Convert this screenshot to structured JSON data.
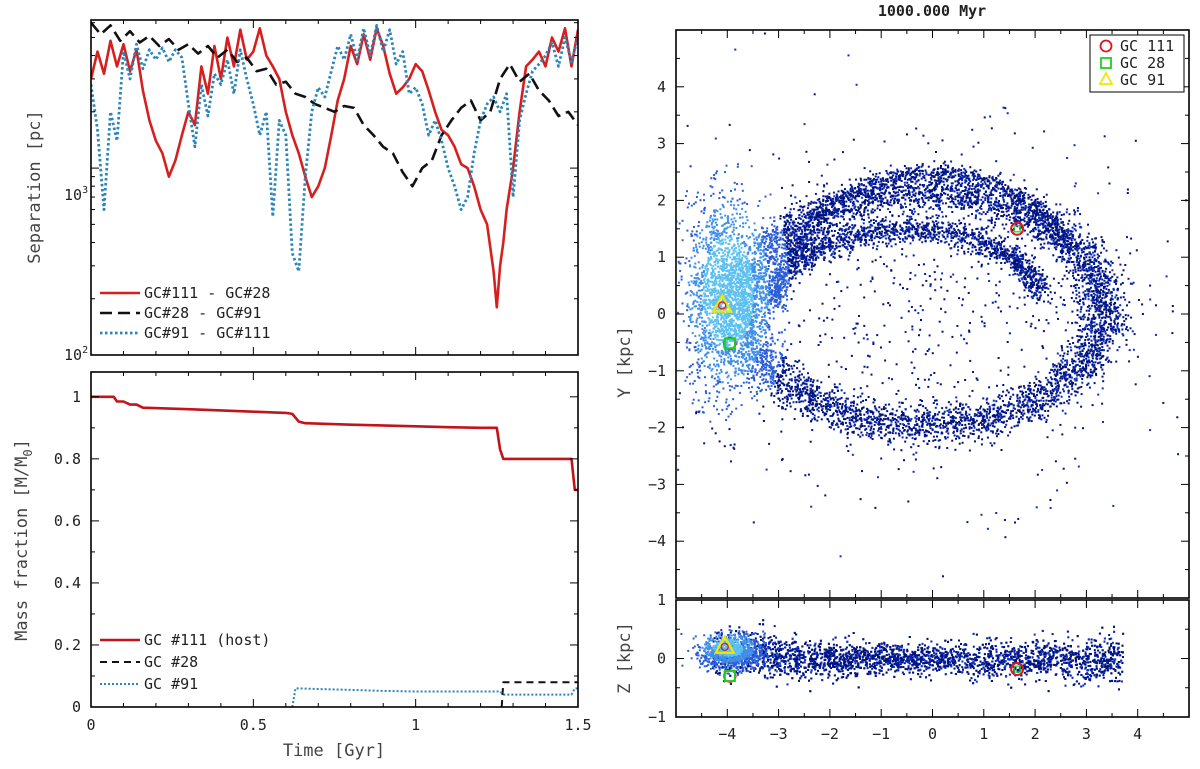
{
  "chart_data": [
    {
      "id": "separation",
      "type": "line",
      "yscale": "log",
      "ylabel": "Separation [pc]",
      "xlim": [
        0,
        1.5
      ],
      "ylim": [
        100,
        6200
      ],
      "yticks": [
        {
          "v": 100,
          "base": "10",
          "exp": "2"
        },
        {
          "v": 1000,
          "base": "10",
          "exp": "3"
        }
      ],
      "legend": "bottom-left",
      "series": [
        {
          "name": "GC#111 - GC#28",
          "color": "#d62020",
          "dash": "none",
          "width": 2.6,
          "x": [
            0,
            0.02,
            0.04,
            0.06,
            0.08,
            0.1,
            0.12,
            0.14,
            0.16,
            0.18,
            0.2,
            0.22,
            0.24,
            0.26,
            0.28,
            0.3,
            0.32,
            0.34,
            0.36,
            0.38,
            0.4,
            0.42,
            0.44,
            0.46,
            0.48,
            0.5,
            0.52,
            0.54,
            0.56,
            0.58,
            0.6,
            0.62,
            0.64,
            0.66,
            0.68,
            0.7,
            0.72,
            0.74,
            0.76,
            0.78,
            0.8,
            0.82,
            0.84,
            0.86,
            0.88,
            0.9,
            0.92,
            0.94,
            0.96,
            0.98,
            1.0,
            1.02,
            1.04,
            1.06,
            1.08,
            1.1,
            1.12,
            1.14,
            1.16,
            1.18,
            1.2,
            1.22,
            1.24,
            1.25,
            1.26,
            1.27,
            1.28,
            1.3,
            1.32,
            1.34,
            1.36,
            1.38,
            1.4,
            1.42,
            1.44,
            1.46,
            1.48,
            1.5
          ],
          "y": [
            3000,
            4200,
            3200,
            4800,
            3500,
            4600,
            3300,
            4300,
            2600,
            1800,
            1400,
            1200,
            900,
            1100,
            1500,
            2000,
            1700,
            3500,
            2500,
            4500,
            3000,
            5000,
            3500,
            5500,
            3800,
            4200,
            5600,
            4000,
            3500,
            3000,
            2000,
            1500,
            1200,
            900,
            700,
            800,
            1000,
            1500,
            2300,
            3000,
            4500,
            3600,
            5200,
            3800,
            5600,
            4500,
            3200,
            2500,
            2700,
            3000,
            3600,
            3300,
            2600,
            2000,
            1600,
            1500,
            1300,
            1050,
            1000,
            800,
            600,
            500,
            280,
            180,
            300,
            400,
            600,
            1000,
            2000,
            3500,
            3800,
            4200,
            3500,
            5000,
            4200,
            5600,
            3500,
            5500
          ]
        },
        {
          "name": "GC#28 - GC#91",
          "color": "#111111",
          "dash": "12,6",
          "width": 2.6,
          "x": [
            0,
            0.03,
            0.06,
            0.09,
            0.12,
            0.15,
            0.18,
            0.21,
            0.24,
            0.27,
            0.3,
            0.33,
            0.36,
            0.39,
            0.42,
            0.45,
            0.48,
            0.51,
            0.54,
            0.57,
            0.6,
            0.63,
            0.66,
            0.69,
            0.72,
            0.75,
            0.78,
            0.81,
            0.84,
            0.87,
            0.9,
            0.93,
            0.96,
            0.99,
            1.02,
            1.05,
            1.08,
            1.11,
            1.14,
            1.17,
            1.2,
            1.23,
            1.26,
            1.29,
            1.32,
            1.35,
            1.38,
            1.41,
            1.44,
            1.47,
            1.5
          ],
          "y": [
            6000,
            5200,
            5800,
            4800,
            5400,
            4700,
            5100,
            4500,
            4900,
            4300,
            4600,
            4100,
            4500,
            3900,
            4300,
            3700,
            3900,
            3300,
            3400,
            2800,
            2900,
            2500,
            2400,
            2200,
            2100,
            2000,
            2150,
            2100,
            1700,
            1500,
            1300,
            1200,
            950,
            800,
            1000,
            1100,
            1500,
            1800,
            2100,
            2300,
            1800,
            2000,
            3000,
            3600,
            2900,
            3200,
            2600,
            2300,
            1900,
            2000,
            1700
          ]
        },
        {
          "name": "GC#91 - GC#111",
          "color": "#2a86b8",
          "dash": "2.5,2.5",
          "width": 2.8,
          "x": [
            0,
            0.02,
            0.04,
            0.06,
            0.08,
            0.1,
            0.12,
            0.14,
            0.16,
            0.18,
            0.2,
            0.22,
            0.24,
            0.26,
            0.28,
            0.3,
            0.32,
            0.34,
            0.36,
            0.38,
            0.4,
            0.42,
            0.44,
            0.46,
            0.48,
            0.5,
            0.52,
            0.54,
            0.56,
            0.58,
            0.6,
            0.62,
            0.64,
            0.66,
            0.68,
            0.7,
            0.72,
            0.74,
            0.76,
            0.78,
            0.8,
            0.82,
            0.84,
            0.86,
            0.88,
            0.9,
            0.92,
            0.94,
            0.96,
            0.98,
            1.0,
            1.02,
            1.04,
            1.06,
            1.08,
            1.1,
            1.12,
            1.14,
            1.16,
            1.18,
            1.2,
            1.22,
            1.24,
            1.26,
            1.28,
            1.3,
            1.32,
            1.34,
            1.36,
            1.38,
            1.4,
            1.42,
            1.44,
            1.46,
            1.48,
            1.5
          ],
          "y": [
            2800,
            1600,
            600,
            2000,
            1400,
            4200,
            3000,
            4600,
            3400,
            4300,
            3800,
            4400,
            3700,
            4300,
            3900,
            2200,
            1300,
            2800,
            1900,
            3200,
            2800,
            3800,
            2500,
            4300,
            3000,
            2200,
            1500,
            2000,
            550,
            1800,
            1500,
            350,
            280,
            900,
            2000,
            2700,
            2400,
            3300,
            4500,
            3800,
            5200,
            3800,
            5600,
            4000,
            5800,
            4200,
            5500,
            3600,
            4200,
            2500,
            2700,
            2200,
            1500,
            1800,
            1400,
            1000,
            800,
            600,
            700,
            1200,
            1800,
            2200,
            2400,
            2000,
            2500,
            700,
            1800,
            2500,
            3300,
            3600,
            4000,
            4700,
            3500,
            5000,
            3700,
            5000
          ]
        }
      ]
    },
    {
      "id": "mass",
      "type": "line",
      "ylabel": "Mass fraction [M/M",
      "ylabel_sub": "0",
      "ylabel_close": "]",
      "xlabel": "Time [Gyr]",
      "xlim": [
        0,
        1.5
      ],
      "ylim": [
        0,
        1.08
      ],
      "xticks": [
        0,
        0.5,
        1,
        1.5
      ],
      "xtick_labels": [
        "0",
        "0.5",
        "1",
        "1.5"
      ],
      "yticks": [
        0,
        0.2,
        0.4,
        0.6,
        0.8,
        1
      ],
      "ytick_labels": [
        "0",
        "0.2",
        "0.4",
        "0.6",
        "0.8",
        "1"
      ],
      "legend": "bottom-left",
      "series": [
        {
          "name": "GC #111 (host)",
          "color": "#c0151b",
          "dash": "none",
          "width": 2.6,
          "x": [
            0,
            0.07,
            0.08,
            0.1,
            0.12,
            0.14,
            0.16,
            0.3,
            0.5,
            0.6,
            0.62,
            0.64,
            0.66,
            0.8,
            1.0,
            1.1,
            1.2,
            1.25,
            1.26,
            1.27,
            1.3,
            1.35,
            1.4,
            1.48,
            1.49,
            1.5
          ],
          "y": [
            1.0,
            1.0,
            0.985,
            0.985,
            0.975,
            0.975,
            0.965,
            0.96,
            0.952,
            0.948,
            0.945,
            0.92,
            0.915,
            0.91,
            0.905,
            0.902,
            0.9,
            0.9,
            0.83,
            0.8,
            0.8,
            0.8,
            0.8,
            0.8,
            0.7,
            0.7
          ]
        },
        {
          "name": "GC #28",
          "color": "#111111",
          "dash": "7,5",
          "width": 2.0,
          "x": [
            1.265,
            1.27,
            1.3,
            1.4,
            1.5
          ],
          "y": [
            0.0,
            0.08,
            0.08,
            0.08,
            0.08
          ]
        },
        {
          "name": "GC #91",
          "color": "#2a86b8",
          "dash": "2,2",
          "width": 2.0,
          "x": [
            0.62,
            0.625,
            0.63,
            0.64,
            0.7,
            0.8,
            0.9,
            1.0,
            1.1,
            1.2,
            1.26,
            1.27,
            1.28,
            1.3,
            1.35,
            1.4,
            1.45,
            1.48,
            1.49,
            1.5
          ],
          "y": [
            0.0,
            0.03,
            0.06,
            0.06,
            0.058,
            0.055,
            0.052,
            0.05,
            0.05,
            0.05,
            0.05,
            0.04,
            0.04,
            0.04,
            0.04,
            0.04,
            0.04,
            0.04,
            0.06,
            0.06
          ]
        }
      ]
    },
    {
      "id": "xy",
      "type": "scatter",
      "title": "1000.000 Myr",
      "ylabel": "Y [kpc]",
      "xlim": [
        -5,
        5
      ],
      "ylim": [
        -5,
        5
      ],
      "yticks": [
        -4,
        -3,
        -2,
        -1,
        0,
        1,
        2,
        3,
        4
      ],
      "ytick_labels": [
        "−4",
        "−3",
        "−2",
        "−1",
        "0",
        "1",
        "2",
        "3",
        "4"
      ],
      "legend": "top-right",
      "legend_entries": [
        {
          "label": "GC 111",
          "marker": "circle",
          "color": "#e0141e"
        },
        {
          "label": "GC 28",
          "marker": "square",
          "color": "#22cc22"
        },
        {
          "label": "GC 91",
          "marker": "triangle",
          "color": "#f2e600"
        }
      ],
      "markers": [
        {
          "name": "GC 111",
          "x": 1.65,
          "y": 1.5
        },
        {
          "name": "GC 28",
          "x": -3.95,
          "y": -0.52
        },
        {
          "name": "GC 91",
          "x": -4.1,
          "y": 0.15
        }
      ]
    },
    {
      "id": "xz",
      "type": "scatter",
      "ylabel": "Z [kpc]",
      "xlim": [
        -5,
        5
      ],
      "ylim": [
        -1,
        1
      ],
      "xticks": [
        -4,
        -3,
        -2,
        -1,
        0,
        1,
        2,
        3,
        4
      ],
      "xtick_labels": [
        "−4",
        "−3",
        "−2",
        "−1",
        "0",
        "1",
        "2",
        "3",
        "4"
      ],
      "yticks": [
        -1,
        0,
        1
      ],
      "ytick_labels": [
        "−1",
        "0",
        "1"
      ],
      "markers": [
        {
          "name": "GC 111",
          "x": 1.65,
          "y": -0.18
        },
        {
          "name": "GC 28",
          "x": -3.95,
          "y": -0.3
        },
        {
          "name": "GC 91",
          "x": -4.05,
          "y": 0.2
        }
      ]
    }
  ]
}
